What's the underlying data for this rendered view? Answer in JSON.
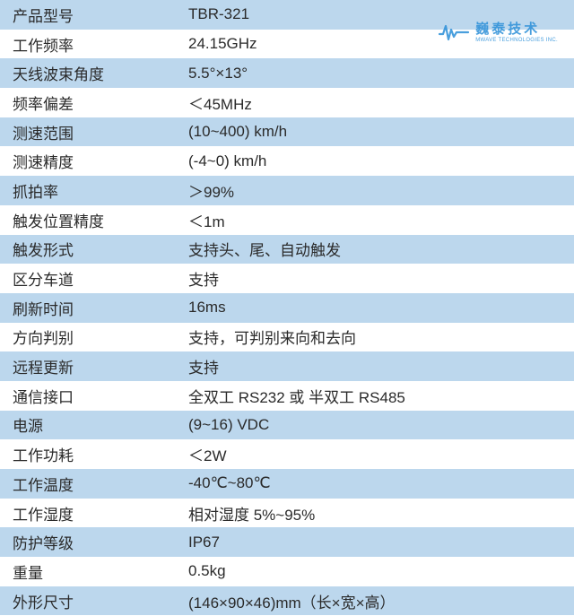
{
  "watermark": {
    "cn": "巍泰技术",
    "en": "MWAVE TECHNOLOGIES INC.",
    "icon_color": "#2b8fd8"
  },
  "table": {
    "row_odd_bg": "#bcd7ed",
    "row_even_bg": "#ffffff",
    "text_color": "#2a2a2a",
    "font_size": 17,
    "label_width": 210,
    "rows": [
      {
        "label": "产品型号",
        "value": "TBR-321"
      },
      {
        "label": "工作频率",
        "value": "24.15GHz"
      },
      {
        "label": "天线波束角度",
        "value": "5.5°×13°"
      },
      {
        "label": "频率偏差",
        "value": "＜45MHz"
      },
      {
        "label": "测速范围",
        "value": "(10~400) km/h"
      },
      {
        "label": "测速精度",
        "value": "(-4~0) km/h"
      },
      {
        "label": "抓拍率",
        "value": "＞99%"
      },
      {
        "label": "触发位置精度",
        "value": "＜1m"
      },
      {
        "label": "触发形式",
        "value": "支持头、尾、自动触发"
      },
      {
        "label": "区分车道",
        "value": "支持"
      },
      {
        "label": "刷新时间",
        "value": "16ms"
      },
      {
        "label": "方向判别",
        "value": "支持，可判别来向和去向"
      },
      {
        "label": "远程更新",
        "value": "支持"
      },
      {
        "label": "通信接口",
        "value": "全双工 RS232  或  半双工 RS485"
      },
      {
        "label": "电源",
        "value": "(9~16) VDC"
      },
      {
        "label": "工作功耗",
        "value": "＜2W"
      },
      {
        "label": "工作温度",
        "value": "-40℃~80℃"
      },
      {
        "label": "工作湿度",
        "value": "相对湿度 5%~95%"
      },
      {
        "label": "防护等级",
        "value": "IP67"
      },
      {
        "label": "重量",
        "value": "0.5kg"
      },
      {
        "label": "外形尺寸",
        "value": "(146×90×46)mm（长×宽×高）"
      }
    ]
  }
}
